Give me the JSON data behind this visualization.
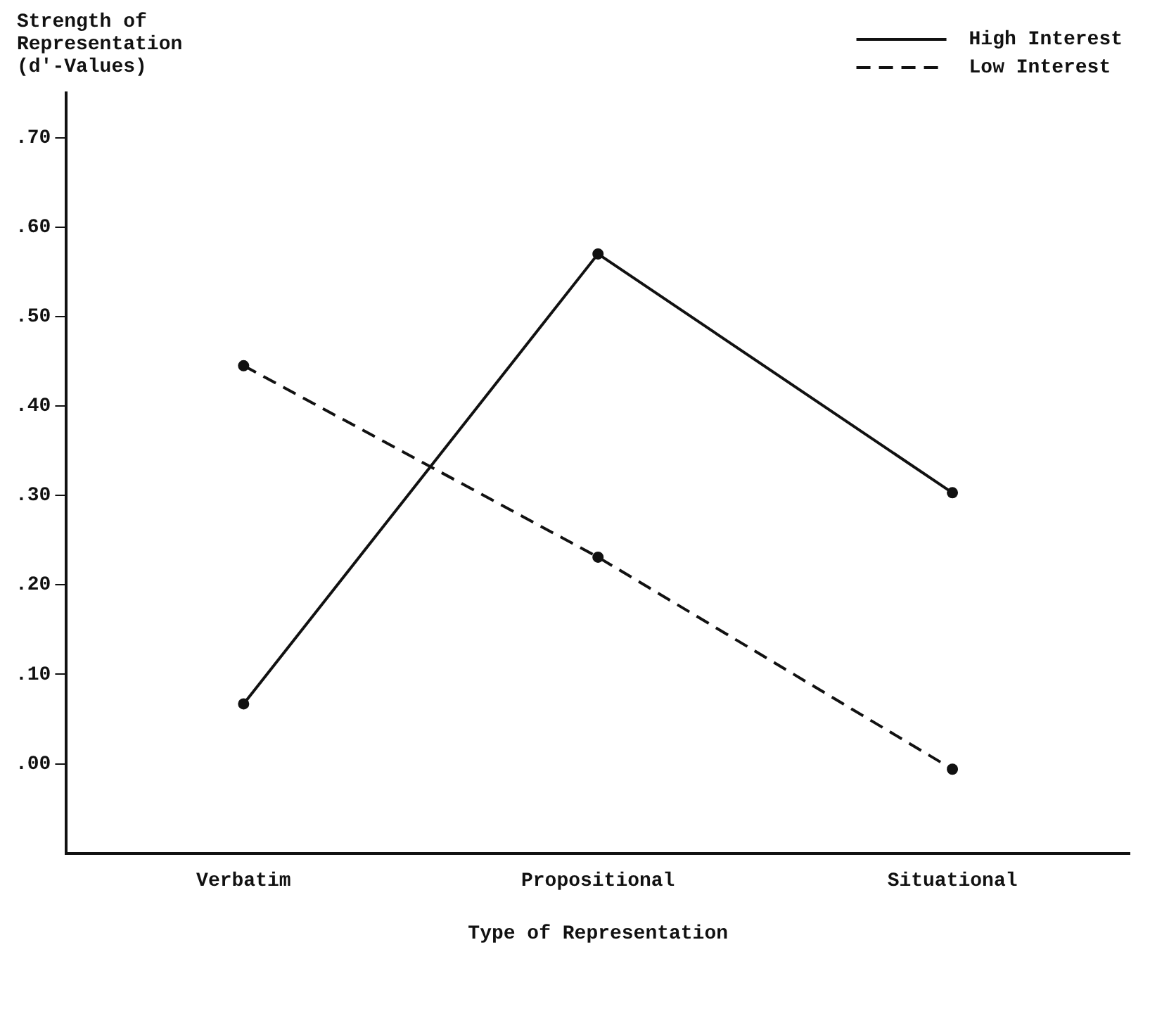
{
  "chart_data": {
    "type": "line",
    "xlabel": "Type of Representation",
    "ylabel": "Strength of Representation (d'-Values)",
    "categories": [
      "Verbatim",
      "Propositional",
      "Situational"
    ],
    "series": [
      {
        "name": "High Interest",
        "color": "#111111",
        "values": [
          0.067,
          0.57,
          0.303
        ],
        "line_style": "solid"
      },
      {
        "name": "Low Interest",
        "color": "#111111",
        "values": [
          0.445,
          0.231,
          -0.006
        ],
        "line_style": "dashed"
      }
    ],
    "ylim": [
      -0.1,
      0.75
    ],
    "yticks": [
      {
        "value": 0,
        "label": ".00"
      },
      {
        "value": 0.1,
        "label": ".10"
      },
      {
        "value": 0.2,
        "label": ".20"
      },
      {
        "value": 0.3,
        "label": ".30"
      },
      {
        "value": 0.4,
        "label": ".40"
      },
      {
        "value": 0.5,
        "label": ".50"
      },
      {
        "value": 0.6,
        "label": ".60"
      },
      {
        "value": 0.7,
        "label": ".70"
      }
    ],
    "grid": false,
    "legend": "top right",
    "marker": "circle"
  }
}
